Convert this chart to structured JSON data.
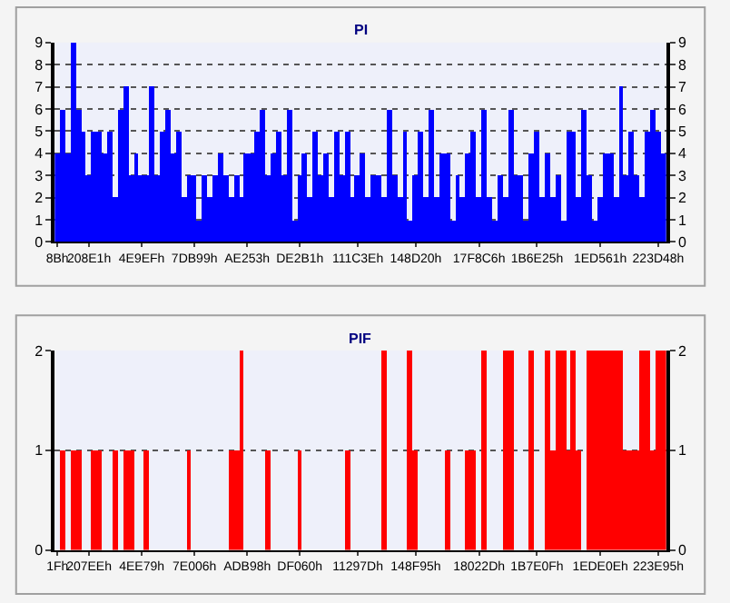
{
  "chart_data": [
    {
      "type": "bar",
      "title": "PI",
      "categories": [
        "8Bh",
        null,
        null,
        null,
        null,
        null,
        "208E1h",
        null,
        null,
        null,
        null,
        null,
        null,
        null,
        null,
        null,
        "4E9EFh",
        null,
        null,
        null,
        null,
        null,
        null,
        null,
        null,
        null,
        "7DB99h",
        null,
        null,
        null,
        null,
        null,
        null,
        null,
        null,
        null,
        "AE253h",
        null,
        null,
        null,
        null,
        null,
        null,
        null,
        null,
        null,
        "DE2B1h",
        null,
        null,
        null,
        null,
        null,
        null,
        null,
        null,
        null,
        null,
        "111C3Eh",
        null,
        null,
        null,
        null,
        null,
        null,
        null,
        null,
        null,
        null,
        "148D20h",
        null,
        null,
        null,
        null,
        null,
        null,
        null,
        null,
        null,
        null,
        null,
        "17F8C6h",
        null,
        null,
        null,
        null,
        null,
        null,
        null,
        null,
        null,
        null,
        "1B6E25h",
        null,
        null,
        null,
        null,
        null,
        null,
        null,
        null,
        null,
        null,
        null,
        "1ED561h",
        null,
        null,
        null,
        null,
        null,
        null,
        null,
        null,
        null,
        null,
        "223D48h",
        null
      ],
      "series": [
        {
          "color": "#0000ff",
          "values": [
            4,
            6,
            4,
            9,
            6,
            5,
            3,
            5,
            5,
            4,
            5,
            2,
            6,
            7,
            3,
            4,
            3,
            3,
            7,
            3,
            5,
            6,
            4,
            5,
            2,
            3,
            3,
            1,
            3,
            2,
            3,
            4,
            3,
            2,
            3,
            2,
            4,
            4,
            5,
            6,
            3,
            4,
            5,
            3,
            6,
            1,
            3,
            4,
            2,
            5,
            3,
            4,
            2,
            5,
            3,
            5,
            2,
            3,
            4,
            2,
            3,
            3,
            2,
            6,
            3,
            2,
            5,
            1,
            3,
            5,
            2,
            6,
            2,
            4,
            4,
            1,
            3,
            2,
            4,
            5,
            2,
            6,
            2,
            1,
            3,
            2,
            6,
            3,
            3,
            1,
            4,
            5,
            2,
            4,
            2,
            3,
            1,
            5,
            5,
            2,
            6,
            3,
            1,
            2,
            4,
            4,
            2,
            7,
            3,
            5,
            3,
            2,
            5,
            6,
            5,
            4
          ]
        }
      ],
      "ylim": [
        0,
        9
      ],
      "yticks": [
        0,
        1,
        2,
        3,
        4,
        5,
        6,
        7,
        8,
        9
      ],
      "y2lim": [
        0,
        9
      ],
      "y2ticks": [
        0,
        1,
        2,
        3,
        4,
        5,
        6,
        7,
        8,
        9
      ],
      "grid": "y"
    },
    {
      "type": "bar",
      "title": "PIF",
      "categories": [
        "1Fh",
        null,
        null,
        null,
        null,
        null,
        "207EEh",
        null,
        null,
        null,
        null,
        null,
        null,
        null,
        null,
        null,
        "4EE79h",
        null,
        null,
        null,
        null,
        null,
        null,
        null,
        null,
        null,
        "7E006h",
        null,
        null,
        null,
        null,
        null,
        null,
        null,
        null,
        null,
        "ADB98h",
        null,
        null,
        null,
        null,
        null,
        null,
        null,
        null,
        null,
        "DF060h",
        null,
        null,
        null,
        null,
        null,
        null,
        null,
        null,
        null,
        null,
        "11297Dh",
        null,
        null,
        null,
        null,
        null,
        null,
        null,
        null,
        null,
        null,
        "148F95h",
        null,
        null,
        null,
        null,
        null,
        null,
        null,
        null,
        null,
        null,
        null,
        "18022Dh",
        null,
        null,
        null,
        null,
        null,
        null,
        null,
        null,
        null,
        null,
        "1B7E0Fh",
        null,
        null,
        null,
        null,
        null,
        null,
        null,
        null,
        null,
        null,
        null,
        "1EDE0Eh",
        null,
        null,
        null,
        null,
        null,
        null,
        null,
        null,
        null,
        null,
        "223E95h",
        null
      ],
      "series": [
        {
          "color": "#ff0000",
          "values": [
            0,
            1,
            0,
            1,
            1,
            0,
            0,
            1,
            1,
            0,
            0,
            1,
            0,
            1,
            1,
            0,
            0,
            1,
            0,
            0,
            0,
            0,
            0,
            0,
            0,
            1,
            0,
            0,
            0,
            0,
            0,
            0,
            0,
            1,
            1,
            2,
            0,
            0,
            0,
            0,
            1,
            0,
            0,
            0,
            0,
            0,
            1,
            0,
            0,
            0,
            0,
            0,
            0,
            0,
            0,
            1,
            0,
            0,
            0,
            0,
            0,
            0,
            2,
            0,
            0,
            0,
            0,
            2,
            1,
            0,
            0,
            0,
            0,
            0,
            1,
            0,
            0,
            0,
            1,
            1,
            0,
            2,
            0,
            0,
            0,
            2,
            2,
            0,
            0,
            0,
            2,
            0,
            0,
            2,
            1,
            2,
            2,
            1,
            2,
            1,
            0,
            2,
            2,
            2,
            2,
            2,
            2,
            2,
            1,
            1,
            1,
            2,
            2,
            1,
            2,
            2
          ]
        }
      ],
      "ylim": [
        0,
        2
      ],
      "yticks": [
        0,
        1,
        2
      ],
      "y2lim": [
        0,
        2
      ],
      "y2ticks": [
        0,
        1,
        2
      ],
      "grid": "y"
    }
  ]
}
